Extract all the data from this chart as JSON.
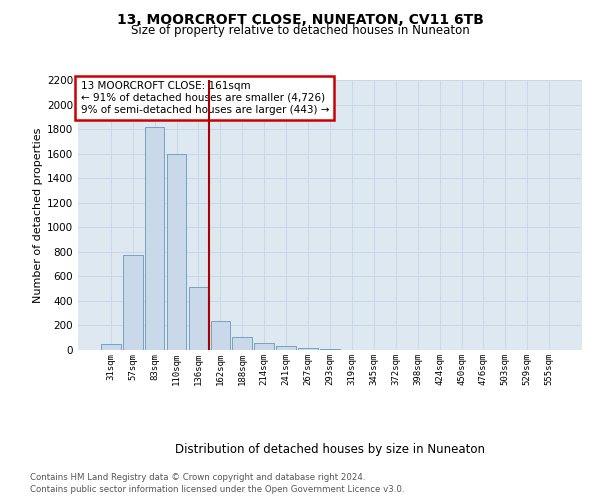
{
  "title": "13, MOORCROFT CLOSE, NUNEATON, CV11 6TB",
  "subtitle": "Size of property relative to detached houses in Nuneaton",
  "xlabel": "Distribution of detached houses by size in Nuneaton",
  "ylabel": "Number of detached properties",
  "footnote1": "Contains HM Land Registry data © Crown copyright and database right 2024.",
  "footnote2": "Contains public sector information licensed under the Open Government Licence v3.0.",
  "annotation_line1": "13 MOORCROFT CLOSE: 161sqm",
  "annotation_line2": "← 91% of detached houses are smaller (4,726)",
  "annotation_line3": "9% of semi-detached houses are larger (443) →",
  "bar_color": "#c9d9ea",
  "bar_edge_color": "#6699bb",
  "vline_color": "#aa0000",
  "annotation_box_edge_color": "#cc0000",
  "annotation_box_face_color": "#ffffff",
  "categories": [
    "31sqm",
    "57sqm",
    "83sqm",
    "110sqm",
    "136sqm",
    "162sqm",
    "188sqm",
    "214sqm",
    "241sqm",
    "267sqm",
    "293sqm",
    "319sqm",
    "345sqm",
    "372sqm",
    "398sqm",
    "424sqm",
    "450sqm",
    "476sqm",
    "503sqm",
    "529sqm",
    "555sqm"
  ],
  "values": [
    50,
    775,
    1820,
    1600,
    510,
    235,
    110,
    55,
    30,
    15,
    10,
    0,
    0,
    0,
    0,
    0,
    0,
    0,
    0,
    0,
    0
  ],
  "vline_x": 4.5,
  "ylim": [
    0,
    2200
  ],
  "yticks": [
    0,
    200,
    400,
    600,
    800,
    1000,
    1200,
    1400,
    1600,
    1800,
    2000,
    2200
  ],
  "grid_color": "#c8d8e8",
  "background_color": "#dde8f0",
  "figure_bg": "#ffffff"
}
